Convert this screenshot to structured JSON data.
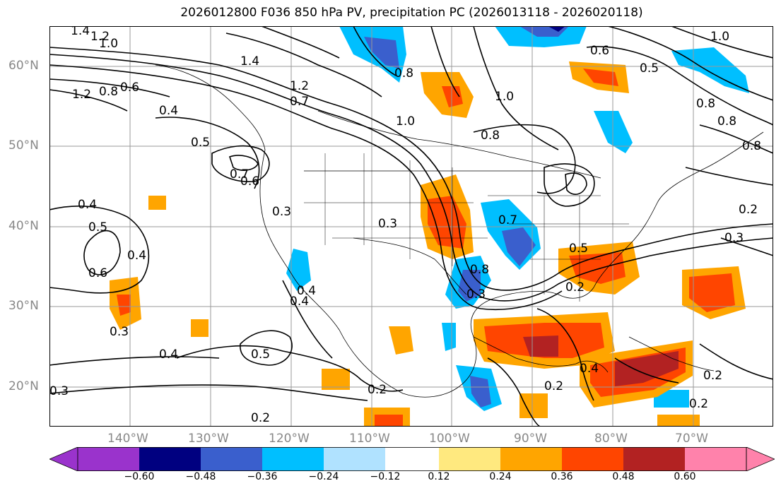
{
  "title": "2026012800 F036 850 hPa PV, precipitation PC (2026013118 - 2026020118)",
  "lat_labels": [
    "60°N",
    "50°N",
    "40°N",
    "30°N",
    "20°N"
  ],
  "lon_labels": [
    "140°W",
    "130°W",
    "120°W",
    "110°W",
    "100°W",
    "90°W",
    "80°W",
    "70°W"
  ],
  "colorbar": {
    "labels": [
      "−0.60",
      "−0.48",
      "−0.36",
      "−0.24",
      "−0.12",
      "0.12",
      "0.24",
      "0.36",
      "0.48",
      "0.60"
    ],
    "colors": [
      "#9a33cc",
      "#000080",
      "#3a5fcd",
      "#00bfff",
      "#b0e2ff",
      "#ffffff",
      "#ffe97f",
      "#ffa500",
      "#ff4500",
      "#b22222",
      "#ff82ab",
      "#ff69b4"
    ]
  },
  "contour_labels": [
    "1.4",
    "1.2",
    "1.0",
    "1.2",
    "0.8",
    "0.6",
    "0.4",
    "0.5",
    "0.7",
    "0.6",
    "0.4",
    "0.5",
    "0.6",
    "0.4",
    "0.3",
    "0.4",
    "0.3",
    "1.4",
    "1.2",
    "0.7",
    "1.0",
    "0.8",
    "0.3",
    "0.3",
    "0.2",
    "0.4",
    "0.5",
    "0.2",
    "0.7",
    "0.8",
    "1.0",
    "0.8",
    "0.5",
    "0.6",
    "0.8",
    "0.8",
    "1.0",
    "0.8",
    "0.2",
    "0.3",
    "0.5",
    "0.2",
    "0.4",
    "0.2",
    "0.2",
    "0.2",
    "0.3",
    "0.4"
  ],
  "colors": {
    "axis_label": "#888888",
    "contour": "#000000",
    "grid": "#999999"
  }
}
